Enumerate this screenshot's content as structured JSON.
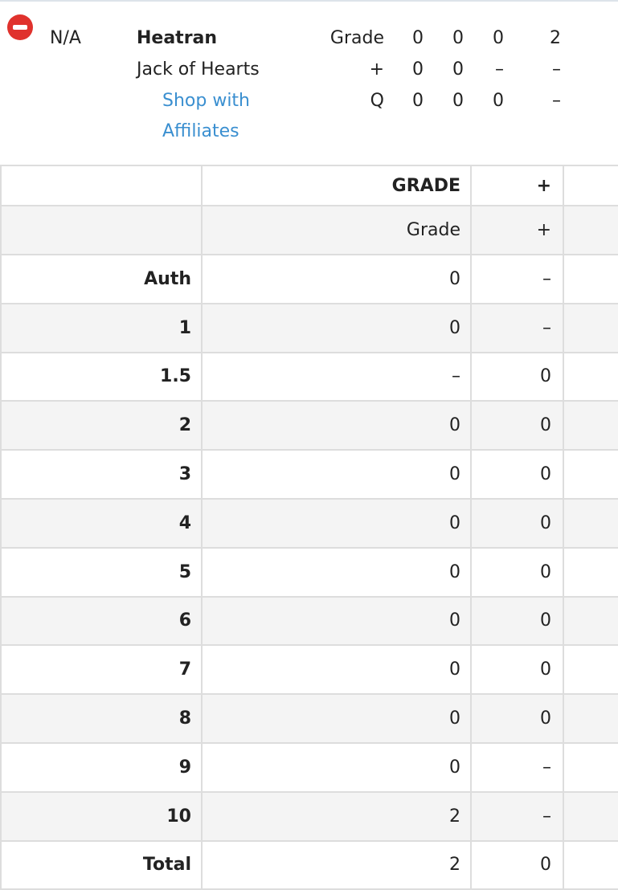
{
  "header": {
    "grade_status": "N/A",
    "name": "Heatran",
    "subtitle": "Jack of Hearts",
    "link": [
      "Shop with",
      "Affiliates"
    ],
    "summary": [
      [
        "Grade",
        "0",
        "0",
        "0",
        "2"
      ],
      [
        "+",
        "0",
        "0",
        "–",
        "–"
      ],
      [
        "Q",
        "0",
        "0",
        "0",
        "–"
      ]
    ]
  },
  "table": {
    "header_rows": [
      [
        "",
        "GRADE",
        "+"
      ],
      [
        "",
        "Grade",
        "+"
      ]
    ],
    "rows": [
      [
        "Auth",
        "0",
        "–"
      ],
      [
        "1",
        "0",
        "–"
      ],
      [
        "1.5",
        "–",
        "0"
      ],
      [
        "2",
        "0",
        "0"
      ],
      [
        "3",
        "0",
        "0"
      ],
      [
        "4",
        "0",
        "0"
      ],
      [
        "5",
        "0",
        "0"
      ],
      [
        "6",
        "0",
        "0"
      ],
      [
        "7",
        "0",
        "0"
      ],
      [
        "8",
        "0",
        "0"
      ],
      [
        "9",
        "0",
        "–"
      ],
      [
        "10",
        "2",
        "–"
      ],
      [
        "Total",
        "2",
        "0"
      ]
    ]
  }
}
